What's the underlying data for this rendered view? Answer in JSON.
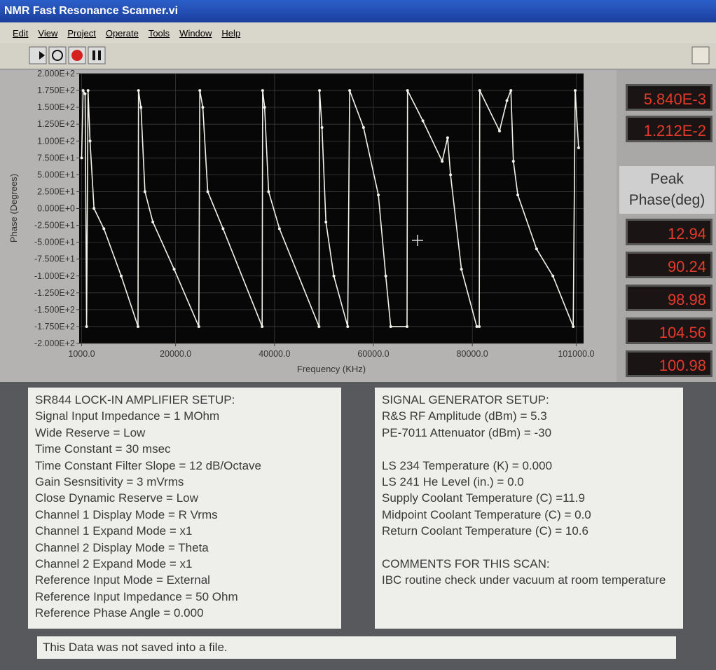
{
  "window": {
    "title": "NMR Fast Resonance Scanner.vi"
  },
  "menu": [
    "Edit",
    "View",
    "Project",
    "Operate",
    "Tools",
    "Window",
    "Help"
  ],
  "chart_data": {
    "type": "line",
    "xlabel": "Frequency (KHz)",
    "ylabel": "Phase (Degrees)",
    "xlim": [
      500,
      102500
    ],
    "ylim": [
      -200,
      200
    ],
    "xticks": [
      {
        "value": 1000,
        "label": "1000.0"
      },
      {
        "value": 20000,
        "label": "20000.0"
      },
      {
        "value": 40000,
        "label": "40000.0"
      },
      {
        "value": 60000,
        "label": "60000.0"
      },
      {
        "value": 80000,
        "label": "80000.0"
      },
      {
        "value": 101000,
        "label": "101000.0"
      }
    ],
    "yticks": [
      {
        "value": 200,
        "label": "2.000E+2"
      },
      {
        "value": 175,
        "label": "1.750E+2"
      },
      {
        "value": 150,
        "label": "1.500E+2"
      },
      {
        "value": 125,
        "label": "1.250E+2"
      },
      {
        "value": 100,
        "label": "1.000E+2"
      },
      {
        "value": 75,
        "label": "7.500E+1"
      },
      {
        "value": 50,
        "label": "5.000E+1"
      },
      {
        "value": 25,
        "label": "2.500E+1"
      },
      {
        "value": 0,
        "label": "0.000E+0"
      },
      {
        "value": -25,
        "label": "-2.500E+1"
      },
      {
        "value": -50,
        "label": "-5.000E+1"
      },
      {
        "value": -75,
        "label": "-7.500E+1"
      },
      {
        "value": -100,
        "label": "-1.000E+2"
      },
      {
        "value": -125,
        "label": "-1.250E+2"
      },
      {
        "value": -150,
        "label": "-1.500E+2"
      },
      {
        "value": -175,
        "label": "-1.750E+2"
      },
      {
        "value": -200,
        "label": "-2.000E+2"
      }
    ],
    "grid": true,
    "series": [
      {
        "color": "#f2f2ea",
        "x": [
          1000,
          1300,
          1700,
          2000,
          2300,
          2700,
          3500,
          5500,
          9000,
          12400,
          12500,
          13000,
          13800,
          15400,
          19700,
          24700,
          24900,
          25500,
          26500,
          29600,
          37500,
          37600,
          38000,
          38800,
          41000,
          49000,
          49100,
          49600,
          50400,
          52000,
          54800,
          55200,
          58000,
          61000,
          62500,
          63500,
          66800,
          66900,
          70000,
          73900,
          75000,
          75600,
          77800,
          80900,
          81400,
          81500,
          85500,
          87000,
          87800,
          88300,
          89200,
          93000,
          96300,
          100400,
          100800,
          101500
        ],
        "values": [
          75,
          175,
          170,
          -175,
          175,
          100,
          0,
          -30,
          -100,
          -175,
          175,
          150,
          25,
          -20,
          -90,
          -175,
          175,
          150,
          25,
          -30,
          -175,
          175,
          150,
          25,
          -30,
          -175,
          175,
          120,
          -20,
          -100,
          -175,
          175,
          120,
          20,
          -100,
          -175,
          -175,
          175,
          130,
          70,
          105,
          50,
          -90,
          -175,
          -175,
          175,
          115,
          160,
          175,
          70,
          20,
          -60,
          -100,
          -175,
          175,
          90
        ]
      }
    ]
  },
  "readouts": [
    "5.840E-3",
    "1.212E-2"
  ],
  "peak_phase": {
    "label": "Peak Phase(deg)",
    "values": [
      "12.94",
      "90.24",
      "98.98",
      "104.56",
      "100.98"
    ]
  },
  "lockin": {
    "title": "SR844 LOCK-IN AMPLIFIER SETUP:",
    "lines": [
      "Signal Input Impedance = 1 MOhm",
      "Wide Reserve = Low",
      "Time Constant = 30 msec",
      "Time Constant Filter Slope = 12 dB/Octave",
      "Gain Sesnsitivity = 3 mVrms",
      "Close Dynamic Reserve = Low",
      "Channel 1 Display Mode = R Vrms",
      "Channel 1 Expand Mode = x1",
      "Channel 2 Display Mode = Theta",
      "Channel 2 Expand Mode = x1",
      "Reference Input Mode  = External",
      "Reference Input Impedance = 50 Ohm",
      "Reference Phase Angle = 0.000"
    ]
  },
  "generator": {
    "title": "SIGNAL GENERATOR SETUP:",
    "lines": [
      "R&S RF Amplitude (dBm)  = 5.3",
      "PE-7011 Attenuator (dBm) = -30",
      "",
      "LS 234 Temperature (K) = 0.000",
      "LS 241 He Level (in.) = 0.0",
      "Supply Coolant Temperature (C) =11.9",
      "Midpoint Coolant Temperature (C) = 0.0",
      "Return Coolant Temperature (C) = 10.6",
      "",
      "COMMENTS FOR THIS SCAN:",
      "IBC routine check under vacuum at room temperature"
    ]
  },
  "status": "This Data was not saved into a file."
}
